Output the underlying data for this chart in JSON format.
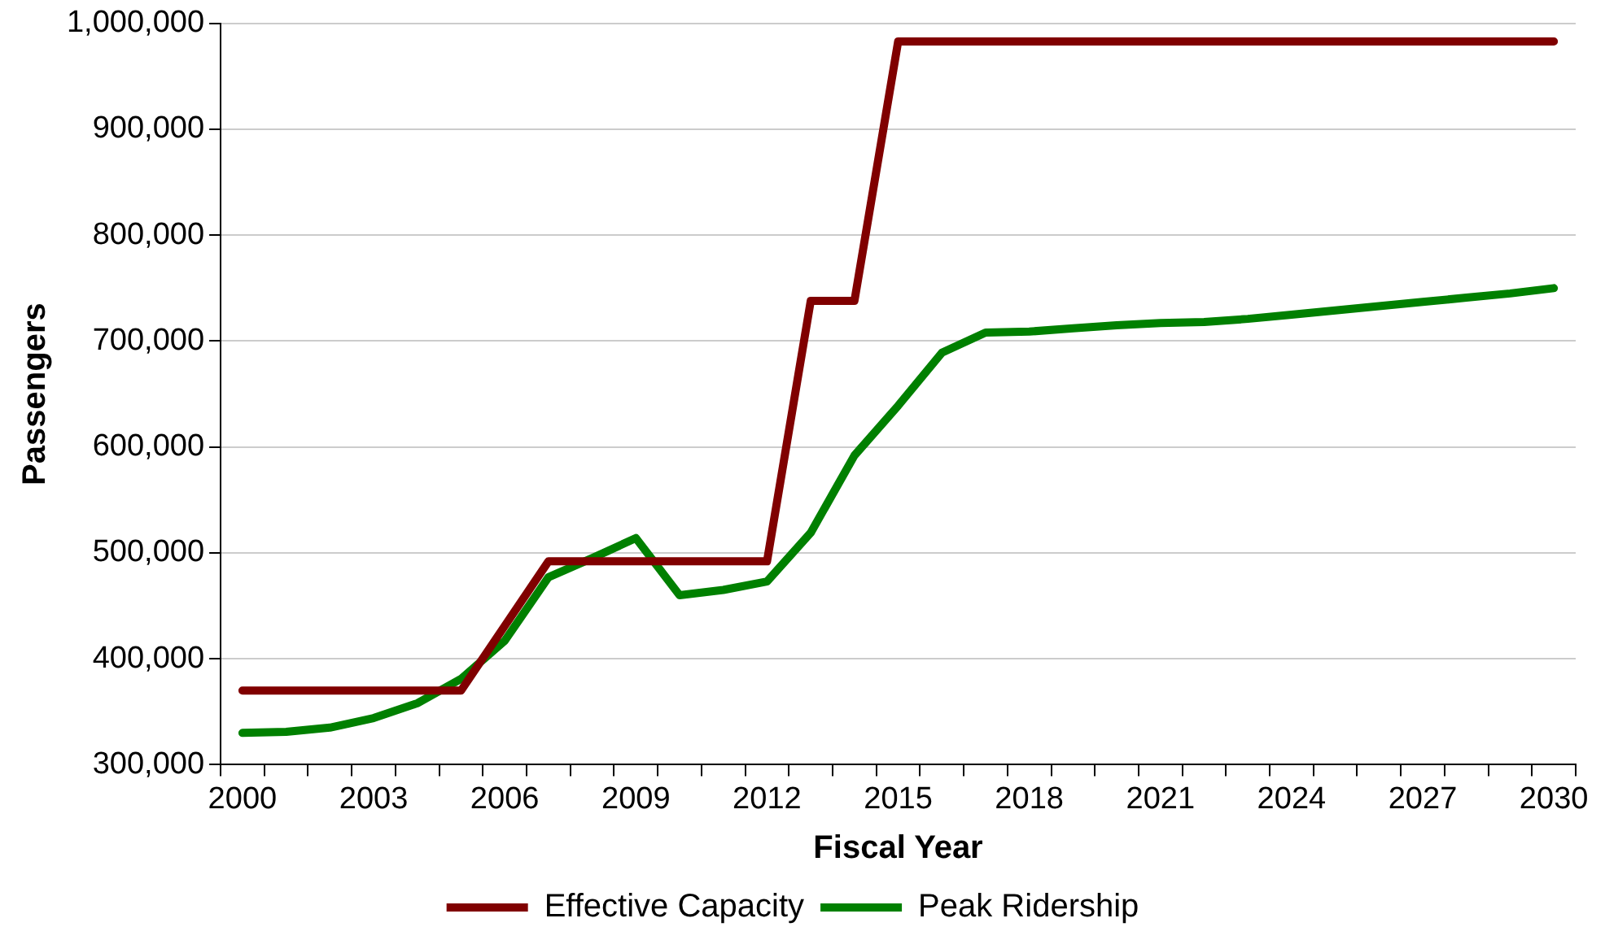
{
  "chart_data": {
    "type": "line",
    "xlabel": "Fiscal Year",
    "ylabel": "Passengers",
    "categories": [
      "2000",
      null,
      null,
      "2003",
      null,
      null,
      "2006",
      null,
      null,
      "2009",
      null,
      null,
      "2012",
      null,
      null,
      "2015",
      null,
      null,
      "2018",
      null,
      null,
      "2021",
      null,
      null,
      "2024",
      null,
      null,
      "2027",
      null,
      null,
      "2030"
    ],
    "series": [
      {
        "name": "Effective Capacity",
        "color": "#800000",
        "values": [
          370000,
          370000,
          370000,
          370000,
          370000,
          370000,
          431000,
          492000,
          492000,
          492000,
          492000,
          492000,
          492000,
          738000,
          738000,
          983000,
          983000,
          983000,
          983000,
          983000,
          983000,
          983000,
          983000,
          983000,
          983000,
          983000,
          983000,
          983000,
          983000,
          983000,
          983000
        ]
      },
      {
        "name": "Peak Ridership",
        "color": "#008000",
        "values": [
          330000,
          331000,
          335000,
          344000,
          358000,
          381000,
          417000,
          477000,
          495000,
          514000,
          460000,
          465000,
          473000,
          519000,
          592000,
          639000,
          689000,
          708000,
          709000,
          712000,
          715000,
          717000,
          718000,
          721000,
          725000,
          729000,
          733000,
          737000,
          741000,
          745000,
          750000
        ]
      }
    ],
    "ylim": [
      300000,
      1000000
    ],
    "yticks": [
      {
        "value": 300000,
        "label": "300,000"
      },
      {
        "value": 400000,
        "label": "400,000"
      },
      {
        "value": 500000,
        "label": "500,000"
      },
      {
        "value": 600000,
        "label": "600,000"
      },
      {
        "value": 700000,
        "label": "700,000"
      },
      {
        "value": 800000,
        "label": "800,000"
      },
      {
        "value": 900000,
        "label": "900,000"
      },
      {
        "value": 1000000,
        "label": "1,000,000"
      }
    ],
    "grid": "y",
    "legend": "bottom",
    "marker": "none",
    "line_style": "solid"
  }
}
